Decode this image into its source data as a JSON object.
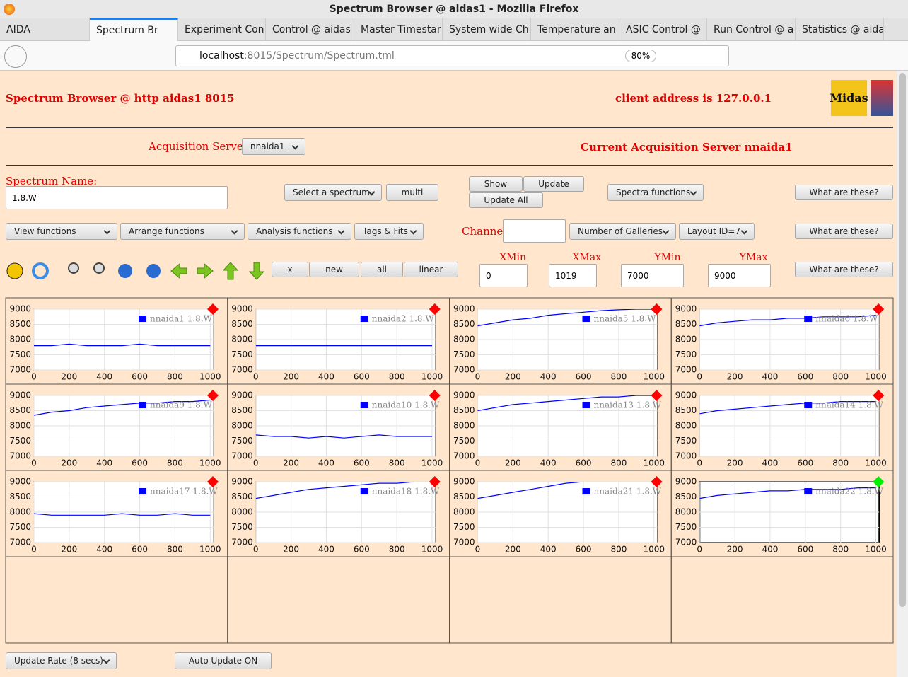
{
  "window": {
    "title": "Spectrum Browser @ aidas1 - Mozilla Firefox",
    "tabs": [
      "AIDA",
      "Spectrum Br",
      "Experiment Con",
      "Control @ aidas",
      "Master Timestar",
      "System wide Ch",
      "Temperature an",
      "ASIC Control @",
      "Run Control @ a",
      "Statistics @ aida"
    ],
    "active_tab": 1,
    "url_host": "localhost",
    "url_rest": ":8015/Spectrum/Spectrum.tml",
    "zoom": "80%"
  },
  "header": {
    "title": "Spectrum Browser @ http aidas1 8015",
    "client": "client address is 127.0.0.1",
    "logo_text": "Midas"
  },
  "acquisition": {
    "label": "Acquisition Servers",
    "server": "nnaida1",
    "current": "Current Acquisition Server nnaida1"
  },
  "toolbar": {
    "spectrum_name_label": "Spectrum Name:",
    "spectrum_name": "1.8.W",
    "channel_label": "Channel:",
    "buttons": [
      "Select a spectrum",
      "multi",
      "Show",
      "Update",
      "Update All",
      "Spectra functions",
      "What are these?",
      "View functions",
      "Arrange functions",
      "Analysis functions",
      "Tags & Fits",
      "Number of Galleries",
      "Layout ID=7",
      "What are these?",
      "x",
      "new",
      "all",
      "linear",
      "What are these?",
      "Update Rate (8 secs)",
      "Auto Update ON"
    ],
    "ranges": [
      {
        "label": "XMin",
        "value": 0
      },
      {
        "label": "XMax",
        "value": 1019
      },
      {
        "label": "YMin",
        "value": 7000
      },
      {
        "label": "YMax",
        "value": 9000
      }
    ]
  },
  "spectra": {
    "type": "line",
    "line_color": "#0000ff",
    "grid": true,
    "xlim": [
      0,
      1019
    ],
    "ylim": [
      7000,
      9000
    ],
    "xticks": [
      0,
      200,
      400,
      600,
      800,
      1000
    ],
    "yticks": [
      7000,
      7500,
      8000,
      8500,
      9000
    ],
    "x": [
      0,
      100,
      200,
      300,
      400,
      500,
      600,
      700,
      800,
      900,
      1000
    ],
    "galleries": [
      {
        "name": "nnaida1 1.8.W",
        "flag": "#ff0000",
        "values": [
          7800,
          7800,
          7850,
          7800,
          7800,
          7800,
          7850,
          7800,
          7800,
          7800,
          7800
        ]
      },
      {
        "name": "nnaida2 1.8.W",
        "flag": "#ff0000",
        "values": [
          7800,
          7800,
          7800,
          7800,
          7800,
          7800,
          7800,
          7800,
          7800,
          7800,
          7800
        ]
      },
      {
        "name": "nnaida5 1.8.W",
        "flag": "#ff0000",
        "values": [
          8450,
          8550,
          8650,
          8700,
          8800,
          8850,
          8900,
          8950,
          8980,
          9000,
          9000
        ]
      },
      {
        "name": "nnaida6 1.8.W",
        "flag": "#ff0000",
        "values": [
          8450,
          8550,
          8600,
          8650,
          8650,
          8700,
          8700,
          8750,
          8750,
          8750,
          8800
        ]
      },
      {
        "name": "nnaida9 1.8.W",
        "flag": "#ff0000",
        "values": [
          8350,
          8450,
          8500,
          8600,
          8650,
          8700,
          8750,
          8750,
          8800,
          8800,
          8850
        ]
      },
      {
        "name": "nnaida10 1.8.W",
        "flag": "#ff0000",
        "values": [
          7700,
          7650,
          7650,
          7600,
          7650,
          7600,
          7650,
          7700,
          7650,
          7650,
          7650
        ]
      },
      {
        "name": "nnaida13 1.8.W",
        "flag": "#ff0000",
        "values": [
          8500,
          8600,
          8700,
          8750,
          8800,
          8850,
          8900,
          8950,
          8950,
          9000,
          9000
        ]
      },
      {
        "name": "nnaida14 1.8.W",
        "flag": "#ff0000",
        "values": [
          8400,
          8500,
          8550,
          8600,
          8650,
          8700,
          8750,
          8750,
          8800,
          8800,
          8800
        ]
      },
      {
        "name": "nnaida17 1.8.W",
        "flag": "#ff0000",
        "values": [
          7950,
          7900,
          7900,
          7900,
          7900,
          7950,
          7900,
          7900,
          7950,
          7900,
          7900
        ]
      },
      {
        "name": "nnaida18 1.8.W",
        "flag": "#ff0000",
        "values": [
          8450,
          8550,
          8650,
          8750,
          8800,
          8850,
          8900,
          8950,
          8950,
          9000,
          9000
        ]
      },
      {
        "name": "nnaida21 1.8.W",
        "flag": "#ff0000",
        "values": [
          8450,
          8550,
          8650,
          8750,
          8850,
          8950,
          9000,
          9000,
          9000,
          9000,
          9000
        ]
      },
      {
        "name": "nnaida22 1.8.W",
        "flag": "#00ee00",
        "selected": true,
        "values": [
          8450,
          8550,
          8600,
          8650,
          8700,
          8700,
          8750,
          8750,
          8750,
          8800,
          8800
        ]
      }
    ]
  }
}
